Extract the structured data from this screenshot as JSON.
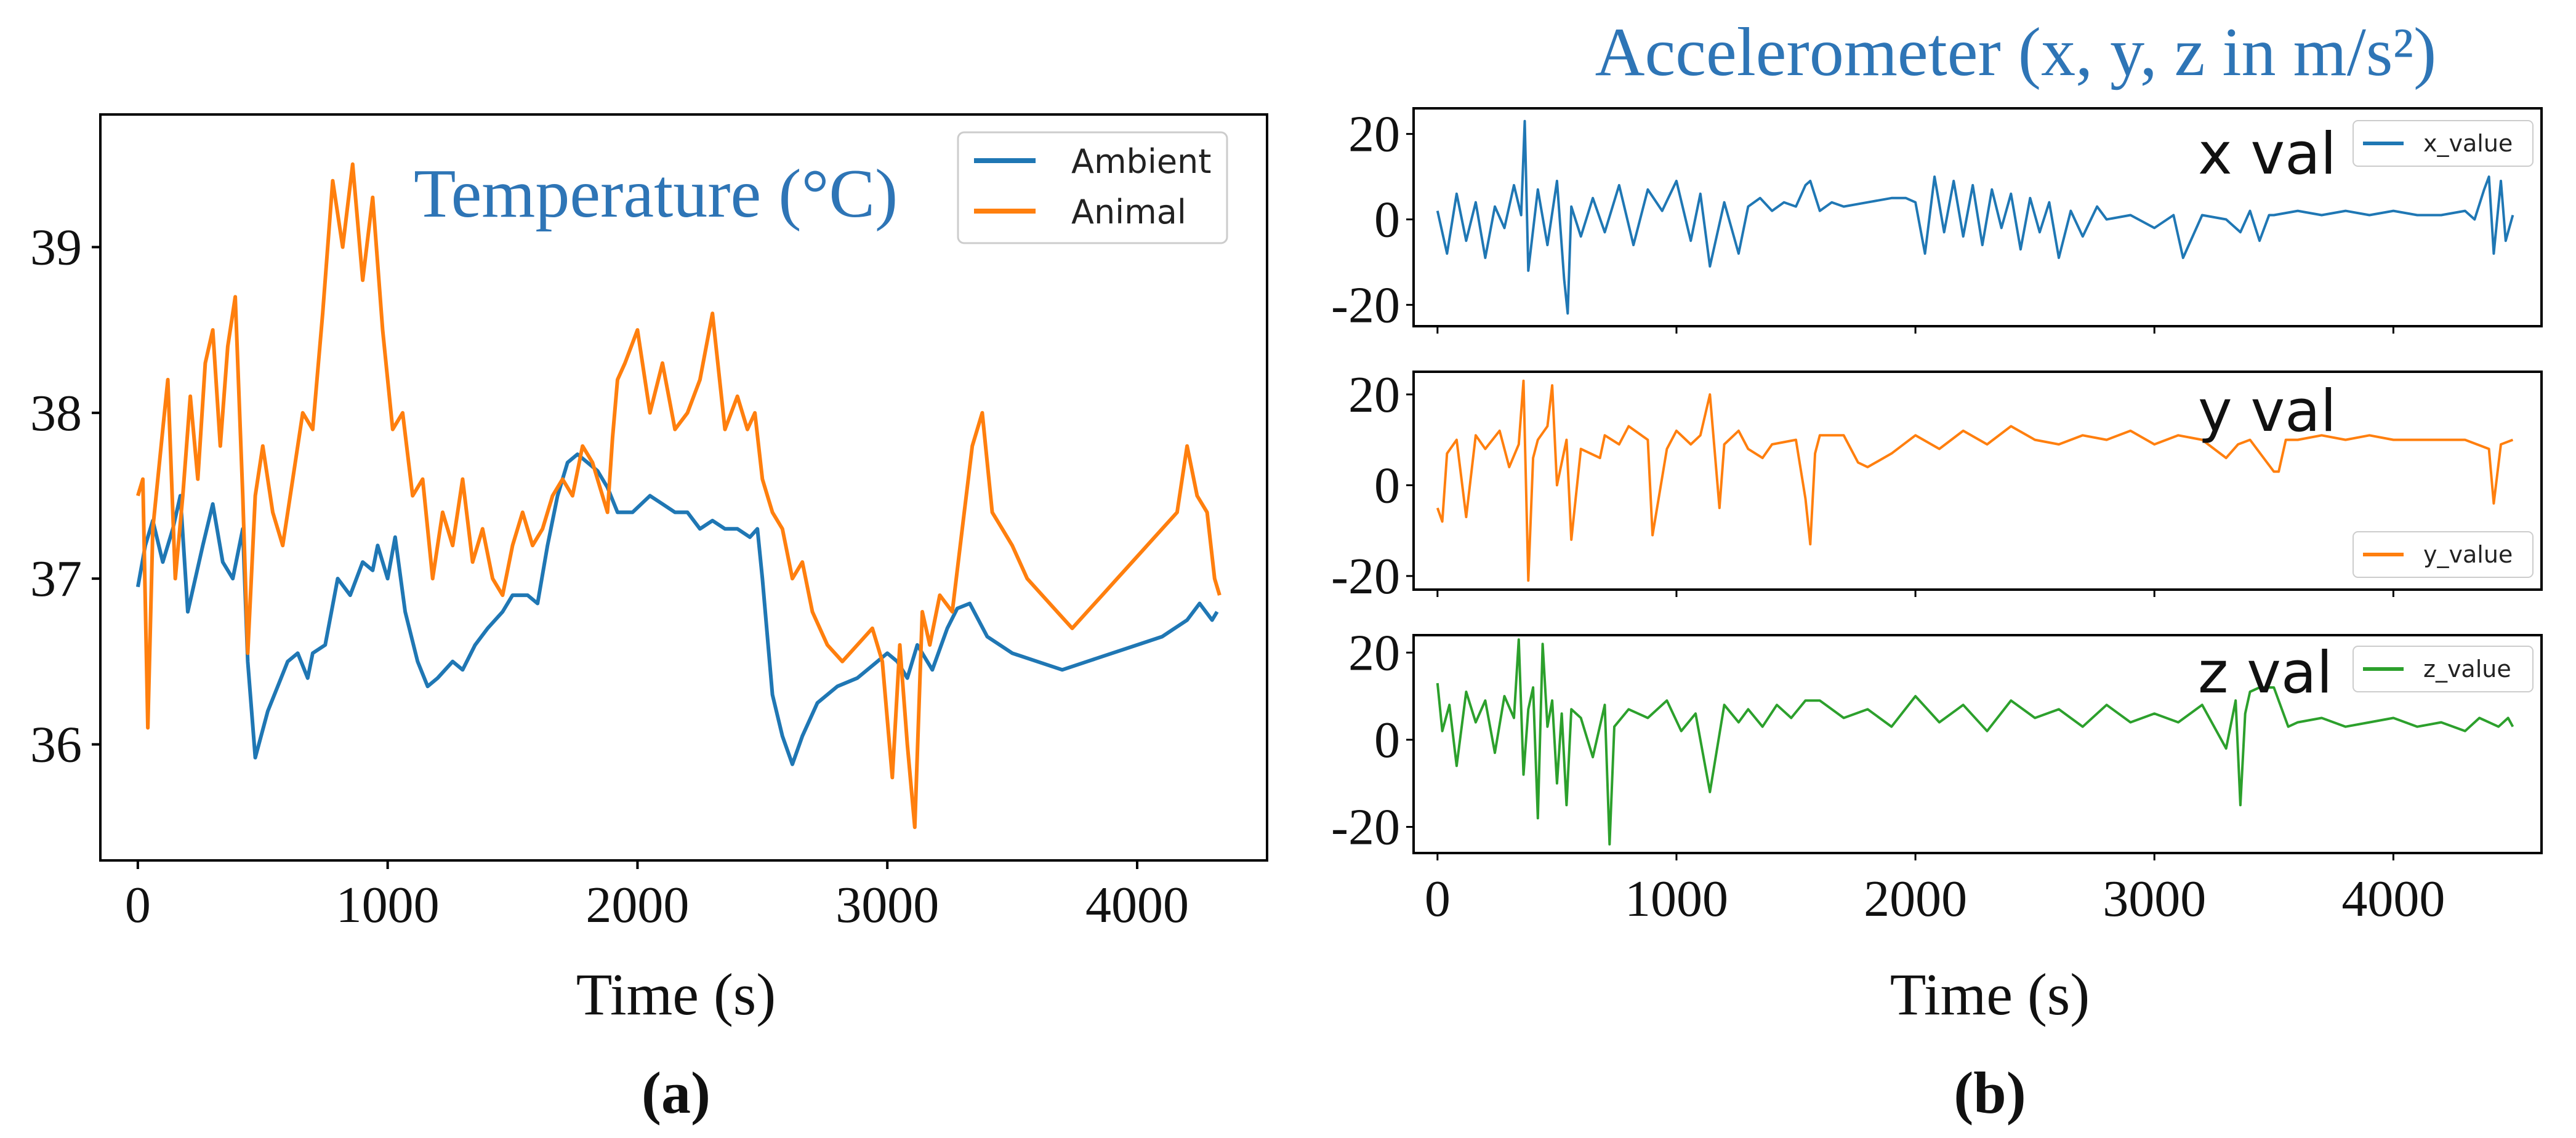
{
  "colors": {
    "blue": "#1f77b4",
    "orange": "#ff7f0e",
    "green": "#2ca02c",
    "title_blue": "#2e75b6"
  },
  "chart_data": [
    {
      "id": "a",
      "type": "line",
      "title": "Temperature (°C)",
      "panel_label": "(a)",
      "xlabel": "Time (s)",
      "ylabel": "",
      "xlim": [
        -150,
        4520
      ],
      "ylim": [
        35.3,
        39.8
      ],
      "xticks": [
        0,
        1000,
        2000,
        3000,
        4000
      ],
      "xtick_labels": [
        "0",
        "1000",
        "2000",
        "3000",
        "4000"
      ],
      "yticks": [
        36,
        37,
        38,
        39
      ],
      "ytick_labels": [
        "36",
        "37",
        "38",
        "39"
      ],
      "legend_position": "top-right",
      "series": [
        {
          "name": "Ambient",
          "color": "#1f77b4",
          "x": [
            0,
            30,
            60,
            100,
            140,
            170,
            200,
            260,
            300,
            340,
            380,
            420,
            440,
            470,
            520,
            560,
            600,
            640,
            680,
            700,
            750,
            800,
            850,
            900,
            940,
            960,
            1000,
            1030,
            1070,
            1120,
            1160,
            1200,
            1260,
            1300,
            1350,
            1400,
            1460,
            1500,
            1560,
            1600,
            1640,
            1680,
            1720,
            1760,
            1800,
            1840,
            1880,
            1920,
            1980,
            2050,
            2100,
            2150,
            2200,
            2250,
            2300,
            2350,
            2400,
            2450,
            2480,
            2500,
            2540,
            2580,
            2620,
            2660,
            2720,
            2800,
            2880,
            2960,
            3000,
            3040,
            3080,
            3120,
            3180,
            3240,
            3280,
            3330,
            3400,
            3500,
            3600,
            3700,
            3800,
            3900,
            4000,
            4100,
            4150,
            4200,
            4250,
            4300,
            4320
          ],
          "values": [
            36.95,
            37.2,
            37.35,
            37.1,
            37.3,
            37.5,
            36.8,
            37.2,
            37.45,
            37.1,
            37.0,
            37.3,
            36.5,
            35.92,
            36.2,
            36.35,
            36.5,
            36.55,
            36.4,
            36.55,
            36.6,
            37.0,
            36.9,
            37.1,
            37.05,
            37.2,
            37.0,
            37.25,
            36.8,
            36.5,
            36.35,
            36.4,
            36.5,
            36.45,
            36.6,
            36.7,
            36.8,
            36.9,
            36.9,
            36.85,
            37.2,
            37.5,
            37.7,
            37.75,
            37.7,
            37.65,
            37.55,
            37.4,
            37.4,
            37.5,
            37.45,
            37.4,
            37.4,
            37.3,
            37.35,
            37.3,
            37.3,
            37.25,
            37.3,
            37.0,
            36.3,
            36.05,
            35.88,
            36.05,
            36.25,
            36.35,
            36.4,
            36.5,
            36.55,
            36.5,
            36.4,
            36.6,
            36.45,
            36.7,
            36.82,
            36.85,
            36.65,
            36.55,
            36.5,
            36.45,
            36.5,
            36.55,
            36.6,
            36.65,
            36.7,
            36.75,
            36.85,
            36.75,
            36.8
          ]
        },
        {
          "name": "Animal",
          "color": "#ff7f0e",
          "x": [
            0,
            20,
            40,
            60,
            80,
            100,
            120,
            150,
            180,
            210,
            240,
            270,
            300,
            330,
            360,
            390,
            420,
            440,
            470,
            500,
            540,
            580,
            620,
            660,
            700,
            740,
            780,
            820,
            860,
            900,
            940,
            980,
            1020,
            1060,
            1100,
            1140,
            1180,
            1220,
            1260,
            1300,
            1340,
            1380,
            1420,
            1460,
            1500,
            1540,
            1580,
            1620,
            1660,
            1700,
            1740,
            1780,
            1820,
            1860,
            1880,
            1900,
            1920,
            1950,
            2000,
            2050,
            2100,
            2150,
            2200,
            2250,
            2300,
            2350,
            2400,
            2440,
            2470,
            2500,
            2540,
            2580,
            2620,
            2660,
            2700,
            2760,
            2820,
            2880,
            2940,
            2980,
            3020,
            3050,
            3080,
            3110,
            3140,
            3170,
            3210,
            3260,
            3300,
            3340,
            3380,
            3420,
            3460,
            3500,
            3560,
            3620,
            3680,
            3740,
            3800,
            3860,
            3920,
            3980,
            4040,
            4100,
            4160,
            4200,
            4240,
            4280,
            4310,
            4330
          ],
          "values": [
            37.5,
            37.6,
            36.1,
            37.3,
            37.6,
            37.9,
            38.2,
            37.0,
            37.5,
            38.1,
            37.6,
            38.3,
            38.5,
            37.8,
            38.4,
            38.7,
            37.5,
            36.55,
            37.5,
            37.8,
            37.4,
            37.2,
            37.6,
            38.0,
            37.9,
            38.6,
            39.4,
            39.0,
            39.5,
            38.8,
            39.3,
            38.5,
            37.9,
            38.0,
            37.5,
            37.6,
            37.0,
            37.4,
            37.2,
            37.6,
            37.1,
            37.3,
            37.0,
            36.9,
            37.2,
            37.4,
            37.2,
            37.3,
            37.5,
            37.6,
            37.5,
            37.8,
            37.7,
            37.5,
            37.4,
            37.85,
            38.2,
            38.3,
            38.5,
            38.0,
            38.3,
            37.9,
            38.0,
            38.2,
            38.6,
            37.9,
            38.1,
            37.9,
            38.0,
            37.6,
            37.4,
            37.3,
            37.0,
            37.1,
            36.8,
            36.6,
            36.5,
            36.6,
            36.7,
            36.5,
            35.8,
            36.6,
            36.0,
            35.5,
            36.8,
            36.6,
            36.9,
            36.8,
            37.3,
            37.8,
            38.0,
            37.4,
            37.3,
            37.2,
            37.0,
            36.9,
            36.8,
            36.7,
            36.8,
            36.9,
            37.0,
            37.1,
            37.2,
            37.3,
            37.4,
            37.8,
            37.5,
            37.4,
            37.0,
            36.9
          ]
        }
      ]
    },
    {
      "id": "b",
      "type": "line",
      "title": "Accelerometer (x, y, z in m/s²)",
      "panel_label": "(b)",
      "xlabel": "Time (s)",
      "xlim": [
        -100,
        4620
      ],
      "xticks": [
        0,
        1000,
        2000,
        3000,
        4000
      ],
      "xtick_labels": [
        "0",
        "1000",
        "2000",
        "3000",
        "4000"
      ],
      "subplots": [
        {
          "name": "x_value",
          "annotation": "x val",
          "color": "#1f77b4",
          "legend_position": "top-right",
          "ylim": [
            -25,
            26
          ],
          "yticks": [
            -20,
            0,
            20
          ],
          "ytick_labels": [
            "-20",
            "0",
            "20"
          ],
          "x": [
            0,
            40,
            80,
            120,
            160,
            200,
            240,
            280,
            320,
            350,
            365,
            380,
            420,
            460,
            500,
            530,
            545,
            560,
            600,
            650,
            700,
            760,
            820,
            880,
            940,
            1000,
            1060,
            1100,
            1140,
            1200,
            1260,
            1300,
            1350,
            1400,
            1450,
            1500,
            1540,
            1560,
            1600,
            1650,
            1700,
            1800,
            1900,
            1960,
            2000,
            2040,
            2080,
            2120,
            2160,
            2200,
            2240,
            2280,
            2320,
            2360,
            2400,
            2440,
            2480,
            2520,
            2560,
            2600,
            2650,
            2700,
            2760,
            2800,
            2900,
            3000,
            3080,
            3120,
            3200,
            3300,
            3360,
            3400,
            3440,
            3480,
            3500,
            3600,
            3700,
            3800,
            3900,
            4000,
            4100,
            4200,
            4300,
            4340,
            4380,
            4400,
            4420,
            4450,
            4470,
            4500
          ],
          "values": [
            2,
            -8,
            6,
            -5,
            4,
            -9,
            3,
            -2,
            8,
            1,
            23,
            -12,
            7,
            -6,
            9,
            -14,
            -22,
            3,
            -4,
            5,
            -3,
            8,
            -6,
            7,
            2,
            9,
            -5,
            6,
            -11,
            4,
            -8,
            3,
            5,
            2,
            4,
            3,
            8,
            9,
            2,
            4,
            3,
            4,
            5,
            5,
            4,
            -8,
            10,
            -3,
            9,
            -4,
            8,
            -6,
            7,
            -2,
            6,
            -7,
            5,
            -3,
            4,
            -9,
            2,
            -4,
            3,
            0,
            1,
            -2,
            1,
            -9,
            1,
            0,
            -3,
            2,
            -5,
            1,
            1,
            2,
            1,
            2,
            1,
            2,
            1,
            1,
            2,
            0,
            7,
            10,
            -8,
            9,
            -5,
            1
          ]
        },
        {
          "name": "y_value",
          "annotation": "y val",
          "color": "#ff7f0e",
          "legend_position": "bottom-right",
          "ylim": [
            -23,
            25
          ],
          "yticks": [
            -20,
            0,
            20
          ],
          "ytick_labels": [
            "-20",
            "0",
            "20"
          ],
          "x": [
            0,
            20,
            40,
            80,
            120,
            160,
            200,
            260,
            300,
            340,
            360,
            380,
            400,
            420,
            460,
            480,
            500,
            540,
            560,
            600,
            680,
            700,
            760,
            800,
            880,
            900,
            960,
            1000,
            1060,
            1100,
            1140,
            1180,
            1200,
            1260,
            1300,
            1360,
            1400,
            1500,
            1540,
            1560,
            1580,
            1600,
            1700,
            1760,
            1800,
            1900,
            2000,
            2100,
            2200,
            2300,
            2400,
            2500,
            2600,
            2700,
            2800,
            2900,
            3000,
            3100,
            3200,
            3300,
            3350,
            3400,
            3500,
            3520,
            3550,
            3600,
            3700,
            3800,
            3900,
            4000,
            4100,
            4200,
            4300,
            4400,
            4420,
            4450,
            4500
          ],
          "values": [
            -5,
            -8,
            7,
            10,
            -7,
            11,
            8,
            12,
            4,
            9,
            23,
            -21,
            6,
            10,
            13,
            22,
            0,
            10,
            -12,
            8,
            6,
            11,
            9,
            13,
            10,
            -11,
            8,
            12,
            9,
            11,
            20,
            -5,
            9,
            12,
            8,
            6,
            9,
            10,
            -3,
            -13,
            7,
            11,
            11,
            5,
            4,
            7,
            11,
            8,
            12,
            9,
            13,
            10,
            9,
            11,
            10,
            12,
            9,
            11,
            10,
            6,
            9,
            10,
            3,
            3,
            10,
            10,
            11,
            10,
            11,
            10,
            10,
            10,
            10,
            8,
            -4,
            9,
            10
          ]
        },
        {
          "name": "z_value",
          "annotation": "z val",
          "color": "#2ca02c",
          "legend_position": "top-right",
          "ylim": [
            -26,
            24
          ],
          "yticks": [
            -20,
            0,
            20
          ],
          "ytick_labels": [
            "-20",
            "0",
            "20"
          ],
          "x": [
            0,
            20,
            50,
            80,
            120,
            160,
            200,
            240,
            280,
            320,
            340,
            360,
            380,
            400,
            420,
            440,
            460,
            480,
            500,
            520,
            540,
            560,
            600,
            650,
            700,
            720,
            740,
            800,
            880,
            960,
            1020,
            1080,
            1140,
            1200,
            1260,
            1300,
            1360,
            1420,
            1480,
            1540,
            1600,
            1700,
            1800,
            1900,
            2000,
            2100,
            2200,
            2300,
            2400,
            2500,
            2600,
            2700,
            2800,
            2900,
            3000,
            3100,
            3200,
            3300,
            3340,
            3360,
            3380,
            3400,
            3440,
            3500,
            3560,
            3600,
            3700,
            3800,
            3900,
            4000,
            4100,
            4200,
            4300,
            4360,
            4400,
            4440,
            4480,
            4500
          ],
          "values": [
            13,
            2,
            8,
            -6,
            11,
            4,
            9,
            -3,
            10,
            5,
            23,
            -8,
            7,
            12,
            -18,
            22,
            3,
            9,
            -10,
            6,
            -15,
            7,
            5,
            -4,
            8,
            -24,
            3,
            7,
            5,
            9,
            2,
            6,
            -12,
            8,
            4,
            7,
            3,
            8,
            5,
            9,
            9,
            5,
            7,
            3,
            10,
            4,
            8,
            2,
            9,
            5,
            7,
            3,
            8,
            4,
            6,
            4,
            8,
            -2,
            9,
            -15,
            6,
            11,
            12,
            12,
            3,
            4,
            5,
            3,
            4,
            5,
            3,
            4,
            2,
            5,
            4,
            3,
            5,
            3
          ]
        }
      ]
    }
  ]
}
